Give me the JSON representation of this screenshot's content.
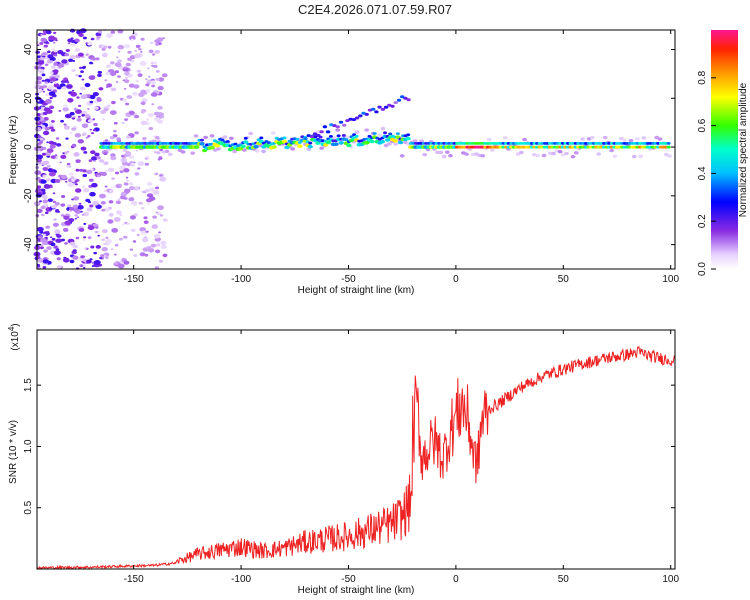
{
  "title": "C2E4.2026.071.07.59.R07",
  "charts": {
    "spectrogram": {
      "type": "heatmap",
      "xlabel": "Height of straight line (km)",
      "ylabel": "Frequency (Hz)",
      "xlim": [
        -195,
        102
      ],
      "ylim": [
        -50,
        48
      ],
      "xticks": [
        -150,
        -100,
        -50,
        0,
        50,
        100
      ],
      "yticks": [
        -40,
        -20,
        0,
        20,
        40
      ],
      "colorbar": {
        "label": "Normalized spectral amplitude",
        "range": [
          0,
          1
        ],
        "ticks": [
          "0.0",
          "0.2",
          "0.4",
          "0.6",
          "0.8"
        ]
      }
    },
    "snr": {
      "type": "line",
      "series_name": "SNR",
      "color": "#ee2222",
      "xlabel": "Height of straight line (km)",
      "ylabel": "SNR (10 * v/v)",
      "multiplier": "(x10",
      "multiplier_exp": "4",
      "multiplier_close": ")",
      "xlim": [
        -195,
        102
      ],
      "ylim": [
        0,
        1.95
      ],
      "xticks": [
        -150,
        -100,
        -50,
        0,
        50,
        100
      ],
      "yticks": [
        "0.5",
        "1.0",
        "1.5"
      ],
      "ytick_values": [
        0.5,
        1.0,
        1.5
      ],
      "profile_km": [
        -195,
        -170,
        -160,
        -140,
        -130,
        -120,
        -100,
        -90,
        -80,
        -70,
        -60,
        -50,
        -40,
        -30,
        -25,
        -21,
        -19,
        -18,
        -16,
        -12,
        -10,
        -6,
        -3,
        0,
        3,
        6,
        8,
        10,
        12,
        15,
        20,
        30,
        40,
        50,
        60,
        70,
        80,
        85,
        90,
        95,
        102
      ],
      "profile_snr": [
        0.01,
        0.015,
        0.02,
        0.03,
        0.05,
        0.1,
        0.15,
        0.12,
        0.14,
        0.18,
        0.2,
        0.22,
        0.26,
        0.3,
        0.35,
        0.45,
        1.3,
        1.35,
        0.9,
        1.0,
        1.05,
        0.9,
        1.1,
        1.25,
        1.35,
        1.2,
        0.95,
        0.85,
        1.2,
        1.3,
        1.35,
        1.48,
        1.57,
        1.63,
        1.68,
        1.72,
        1.75,
        1.77,
        1.74,
        1.72,
        1.7
      ]
    }
  }
}
